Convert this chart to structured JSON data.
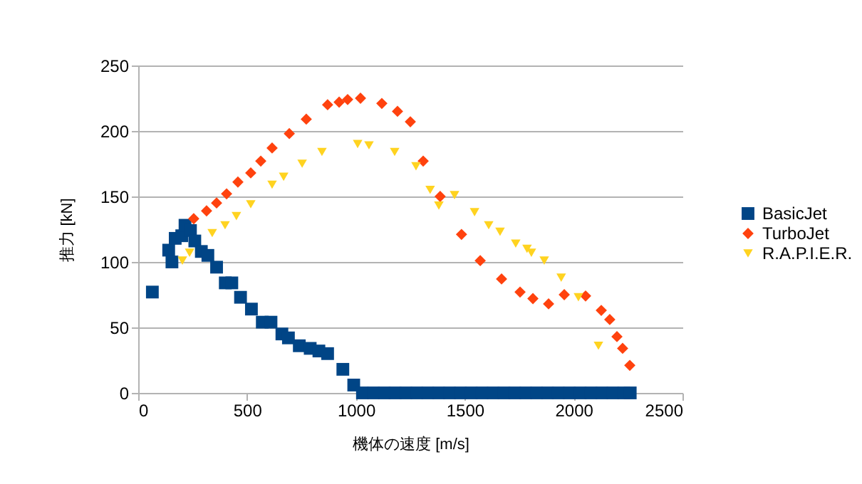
{
  "chart_data": {
    "type": "scatter",
    "xlabel": "機体の速度 [m/s]",
    "ylabel": "推力 [kN]",
    "xlim": [
      0,
      2500
    ],
    "xticks": [
      0,
      500,
      1000,
      1500,
      2000,
      2500
    ],
    "ylim": [
      0,
      250
    ],
    "yticks": [
      0,
      50,
      100,
      150,
      200,
      250
    ],
    "grid": "y",
    "legend": "right",
    "series": [
      {
        "name": "BasicJet",
        "color": "#004586",
        "marker": "square",
        "x": [
          65,
          140,
          155,
          170,
          200,
          215,
          240,
          260,
          290,
          320,
          360,
          400,
          430,
          470,
          520,
          570,
          610,
          660,
          690,
          740,
          790,
          830,
          870,
          940,
          990,
          1030,
          1080,
          1130,
          1180,
          1230,
          1280,
          1330,
          1380,
          1430,
          1480,
          1530,
          1580,
          1630,
          1680,
          1730,
          1780,
          1830,
          1880,
          1930,
          1980,
          2030,
          2080,
          2130,
          2180,
          2230,
          2260
        ],
        "values": [
          77,
          109,
          100,
          118,
          120,
          128,
          124,
          116,
          108,
          105,
          96,
          84,
          84,
          73,
          64,
          54,
          54,
          45,
          42,
          36,
          34,
          32,
          30,
          18,
          6,
          0,
          0,
          0,
          0,
          0,
          0,
          0,
          0,
          0,
          0,
          0,
          0,
          0,
          0,
          0,
          0,
          0,
          0,
          0,
          0,
          0,
          0,
          0,
          0,
          0,
          0
        ]
      },
      {
        "name": "TurboJet",
        "color": "#ff420e",
        "marker": "diamond",
        "x": [
          255,
          314,
          360,
          406,
          458,
          517,
          563,
          615,
          694,
          772,
          870,
          923,
          962,
          1021,
          1119,
          1191,
          1250,
          1309,
          1387,
          1485,
          1571,
          1669,
          1754,
          1813,
          1885,
          1957,
          2055,
          2127,
          2166,
          2199,
          2225,
          2258
        ],
        "values": [
          133,
          139,
          145,
          152,
          161,
          168,
          177,
          187,
          198,
          209,
          220,
          222,
          224,
          225,
          221,
          215,
          207,
          177,
          150,
          121,
          101,
          87,
          77,
          72,
          68,
          75,
          74,
          63,
          56,
          43,
          34,
          21
        ]
      },
      {
        "name": "R.A.P.I.E.R.",
        "color": "#ffd320",
        "marker": "triangle",
        "x": [
          203,
          236,
          340,
          399,
          451,
          517,
          615,
          668,
          753,
          844,
          1008,
          1060,
          1178,
          1276,
          1341,
          1381,
          1453,
          1545,
          1610,
          1662,
          1734,
          1786,
          1806,
          1865,
          1943,
          2022,
          2114
        ],
        "values": [
          101,
          107,
          122,
          128,
          135,
          144,
          159,
          165,
          175,
          184,
          190,
          189,
          184,
          173,
          155,
          143,
          151,
          138,
          128,
          123,
          114,
          110,
          107,
          101,
          88,
          73,
          36
        ]
      }
    ]
  }
}
